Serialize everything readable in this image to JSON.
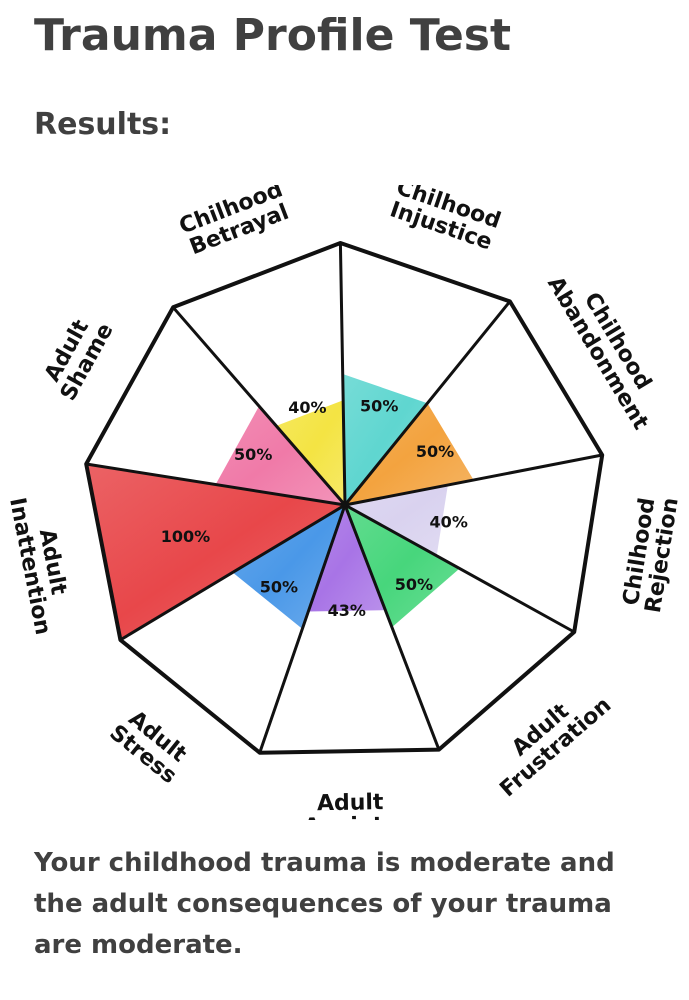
{
  "page": {
    "title": "Trauma Profile Test",
    "results_heading": "Results:",
    "summary": "Your childhood trauma is moderate and the adult consequences of your trauma are moderate."
  },
  "chart_data": {
    "type": "radial-segment",
    "max_value": 100,
    "segments": [
      {
        "category": [
          "Chilhood",
          "Injustice"
        ],
        "value": 50,
        "label": "50%",
        "color": "#5fd6d0"
      },
      {
        "category": [
          "Chilhood",
          "Abandonment"
        ],
        "value": 50,
        "label": "50%",
        "color": "#f3a33f"
      },
      {
        "category": [
          "Chilhood",
          "Rejection"
        ],
        "value": 40,
        "label": "40%",
        "color": "#d9d2ef"
      },
      {
        "category": [
          "Adult",
          "Frustration"
        ],
        "value": 50,
        "label": "50%",
        "color": "#47d67c"
      },
      {
        "category": [
          "Adult",
          "Anxiety"
        ],
        "value": 43,
        "label": "43%",
        "color": "#a874e6"
      },
      {
        "category": [
          "Adult",
          "Stress"
        ],
        "value": 50,
        "label": "50%",
        "color": "#4a98e8"
      },
      {
        "category": [
          "Adult",
          "Inattention"
        ],
        "value": 100,
        "label": "100%",
        "color": "#e8474a"
      },
      {
        "category": [
          "Adult",
          "Shame"
        ],
        "value": 50,
        "label": "50%",
        "color": "#f07aa8"
      },
      {
        "category": [
          "Chilhood",
          "Betrayal"
        ],
        "value": 40,
        "label": "40%",
        "color": "#f4e443"
      }
    ]
  }
}
